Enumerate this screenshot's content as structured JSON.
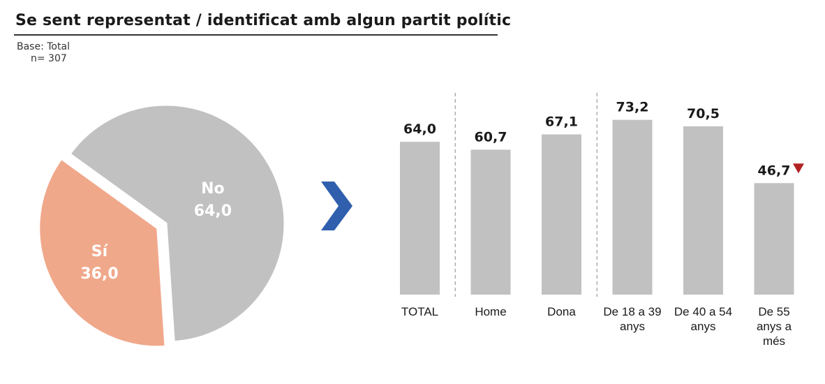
{
  "header": {
    "title": "Se sent representat / identificat amb algun partit polític",
    "base_label": "Base: Total",
    "base_n": "n= 307"
  },
  "colors": {
    "yes": "#F0A88B",
    "no": "#C1C1C1",
    "bar": "#C1C1C1",
    "arrow": "#2F5FAD",
    "down_marker": "#B22222"
  },
  "icons": {
    "arrow": "chevron-right-icon",
    "marker": "triangle-down-icon"
  },
  "chart_data": [
    {
      "type": "pie",
      "slices": [
        {
          "label": "Sí",
          "value": 36.0,
          "display": "36,0"
        },
        {
          "label": "No",
          "value": 64.0,
          "display": "64,0"
        }
      ],
      "exploded": "Sí"
    },
    {
      "type": "bar",
      "categories": [
        "TOTAL",
        "Home",
        "Dona",
        "De 18 a 39 anys",
        "De 40 a 54 anys",
        "De 55 anys a més"
      ],
      "category_lines": [
        [
          "TOTAL"
        ],
        [
          "Home"
        ],
        [
          "Dona"
        ],
        [
          "De 18 a 39",
          "anys"
        ],
        [
          "De 40 a 54",
          "anys"
        ],
        [
          "De 55",
          "anys a",
          "més"
        ]
      ],
      "values": [
        64.0,
        60.7,
        67.1,
        73.2,
        70.5,
        46.7
      ],
      "value_labels": [
        "64,0",
        "60,7",
        "67,1",
        "73,2",
        "70,5",
        "46,7"
      ],
      "significant_down": [
        false,
        false,
        false,
        false,
        false,
        true
      ],
      "group_separators_after": [
        "TOTAL",
        "Dona"
      ],
      "ylim": [
        0,
        100
      ]
    }
  ]
}
